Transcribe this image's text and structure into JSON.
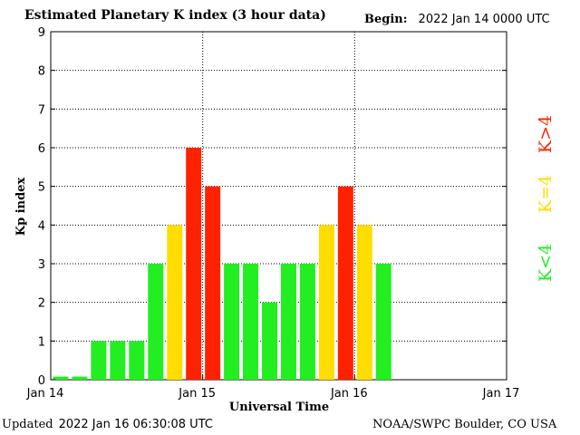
{
  "header": {
    "title": "Estimated Planetary K index (3 hour data)",
    "begin_label": "Begin:",
    "begin_value": "2022 Jan 14 0000 UTC"
  },
  "footer": {
    "updated_label": "Updated",
    "updated_value": "2022 Jan 16 06:30:08 UTC",
    "credit": "NOAA/SWPC Boulder, CO USA"
  },
  "colors": {
    "low": "#22ee22",
    "mid": "#ffdd00",
    "high": "#ff2200"
  },
  "chart_data": {
    "type": "bar",
    "title": "Estimated Planetary K index (3 hour data)",
    "xlabel": "Universal Time",
    "ylabel": "Kp index",
    "ylim": [
      0,
      9
    ],
    "yticks": [
      "0",
      "1",
      "2",
      "3",
      "4",
      "5",
      "6",
      "7",
      "8",
      "9"
    ],
    "xticks": [
      "Jan 14",
      "Jan 15",
      "Jan 16",
      "Jan 17"
    ],
    "interval_hours": 3,
    "grid": true,
    "values": [
      0,
      0,
      1,
      1,
      1,
      3,
      4,
      6,
      5,
      3,
      3,
      2,
      3,
      3,
      4,
      5,
      4,
      3
    ],
    "legend": {
      "placement": "right",
      "entries": [
        {
          "label": "K<4",
          "color": "#22ee22"
        },
        {
          "label": "K=4",
          "color": "#ffdd00"
        },
        {
          "label": "K>4",
          "color": "#ff2200"
        }
      ]
    }
  }
}
